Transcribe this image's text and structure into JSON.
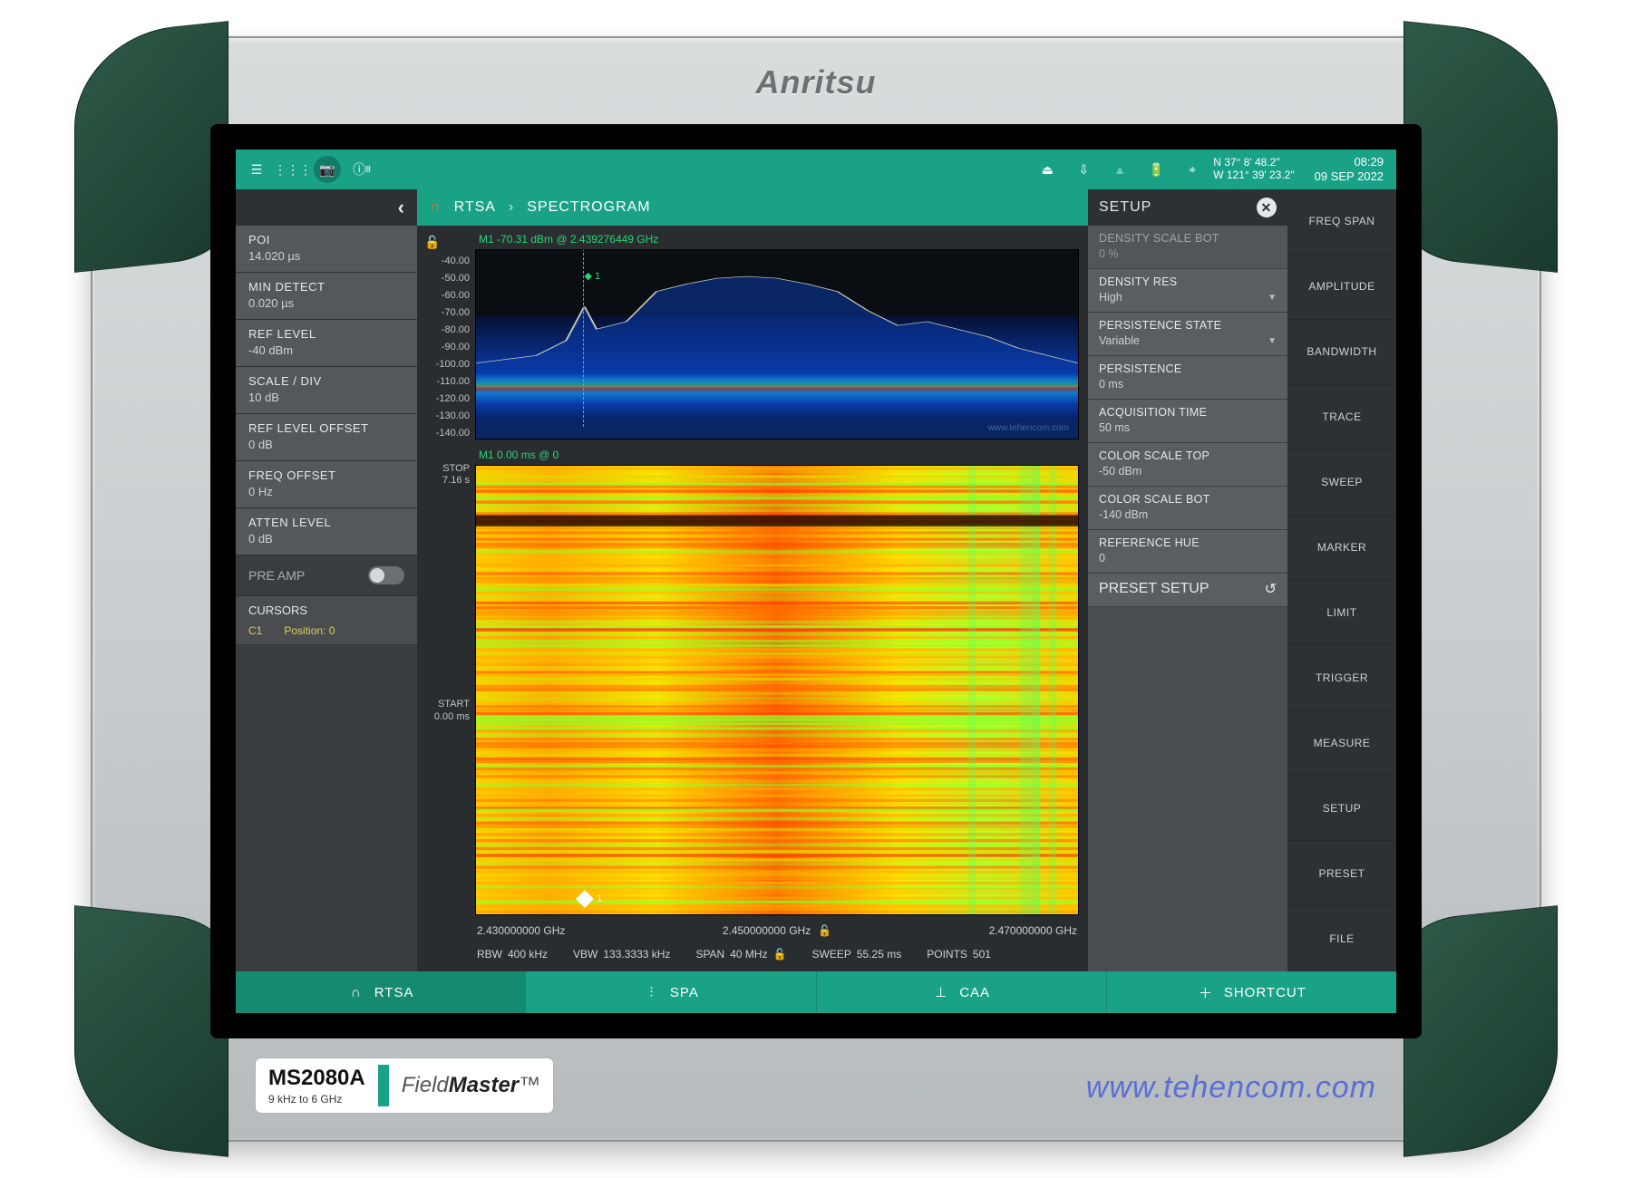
{
  "brand": "Anritsu",
  "model": "MS2080A",
  "freq_range": "9 kHz to 6 GHz",
  "product_line": "FieldMaster™",
  "watermark": "www.tehencom.com",
  "colors": {
    "teal": "#1aa287",
    "teal_dark": "#148a71",
    "panel": "#3a3d40",
    "panel_light": "#54585b",
    "panel_mid": "#4a4d50",
    "bg": "#2a2d2f",
    "text_dim": "#cfd1d3",
    "marker_green": "#2bd37a",
    "cursor_yellow": "#e0cf4a"
  },
  "topbar": {
    "gps_lat": "N 37° 8' 48.2\"",
    "gps_lon": "W 121° 39' 23.2\"",
    "time": "08:29",
    "date": "09 SEP 2022",
    "info_badge": "8"
  },
  "breadcrumb": {
    "mode": "RTSA",
    "view": "SPECTROGRAM"
  },
  "left_panel": [
    {
      "label": "POI",
      "value": "14.020 µs"
    },
    {
      "label": "MIN DETECT",
      "value": "0.020 µs"
    },
    {
      "label": "REF LEVEL",
      "value": "-40 dBm"
    },
    {
      "label": "SCALE / DIV",
      "value": "10 dB"
    },
    {
      "label": "REF LEVEL OFFSET",
      "value": "0 dB"
    },
    {
      "label": "FREQ OFFSET",
      "value": "0 Hz"
    },
    {
      "label": "ATTEN LEVEL",
      "value": "0 dB"
    }
  ],
  "preamp_label": "PRE AMP",
  "cursors_label": "CURSORS",
  "cursor": {
    "id": "C1",
    "pos_label": "Position: 0"
  },
  "yaxis": {
    "ticks": [
      "-40.00",
      "-50.00",
      "-60.00",
      "-70.00",
      "-80.00",
      "-90.00",
      "-100.00",
      "-110.00",
      "-120.00",
      "-130.00",
      "-140.00"
    ],
    "stop_label": "STOP",
    "stop_value": "7.16 s",
    "start_label": "START",
    "start_value": "0.00 ms"
  },
  "marker1": "M1   -70.31 dBm @ 2.439276449 GHz",
  "spectro_marker": "M1  0.00 ms @ 0",
  "plot_watermark": "www.tehencom.com",
  "xaxis": {
    "start": "2.430000000 GHz",
    "center": "2.450000000 GHz",
    "stop": "2.470000000 GHz"
  },
  "readout": {
    "rbw_label": "RBW",
    "rbw": "400 kHz",
    "vbw_label": "VBW",
    "vbw": "133.3333 kHz",
    "span_label": "SPAN",
    "span": "40 MHz",
    "sweep_label": "SWEEP",
    "sweep": "55.25 ms",
    "points_label": "POINTS",
    "points": "501"
  },
  "setup": {
    "title": "SETUP",
    "items": [
      {
        "label": "DENSITY SCALE BOT",
        "value": "0 %",
        "disabled": true
      },
      {
        "label": "DENSITY RES",
        "value": "High",
        "dropdown": true
      },
      {
        "label": "PERSISTENCE STATE",
        "value": "Variable",
        "dropdown": true
      },
      {
        "label": "PERSISTENCE",
        "value": "0 ms"
      },
      {
        "label": "ACQUISITION TIME",
        "value": "50 ms"
      },
      {
        "label": "COLOR SCALE TOP",
        "value": "-50 dBm"
      },
      {
        "label": "COLOR SCALE BOT",
        "value": "-140 dBm"
      },
      {
        "label": "REFERENCE HUE",
        "value": "0"
      }
    ],
    "preset": "PRESET SETUP"
  },
  "menu": [
    "FREQ SPAN",
    "AMPLITUDE",
    "BANDWIDTH",
    "TRACE",
    "SWEEP",
    "MARKER",
    "LIMIT",
    "TRIGGER",
    "MEASURE",
    "SETUP",
    "PRESET",
    "FILE"
  ],
  "tabs": [
    {
      "label": "RTSA",
      "active": true
    },
    {
      "label": "SPA"
    },
    {
      "label": "CAA"
    },
    {
      "label": "SHORTCUT",
      "plus": true
    }
  ],
  "spectrum_chart": {
    "type": "rtsa-density",
    "ylim": [
      -140,
      -40
    ],
    "trace_color": "#f5f0c0",
    "gradient": [
      "#ff2a00",
      "#ffbf00",
      "#57ff3a",
      "#00d8ff",
      "#0030ff"
    ],
    "noise_floor_dbm": -105,
    "peak_envelope": [
      [
        0,
        -100
      ],
      [
        0.05,
        -98
      ],
      [
        0.1,
        -96
      ],
      [
        0.15,
        -88
      ],
      [
        0.18,
        -70
      ],
      [
        0.2,
        -82
      ],
      [
        0.25,
        -78
      ],
      [
        0.3,
        -62
      ],
      [
        0.35,
        -58
      ],
      [
        0.4,
        -55
      ],
      [
        0.45,
        -54
      ],
      [
        0.5,
        -55
      ],
      [
        0.55,
        -58
      ],
      [
        0.6,
        -62
      ],
      [
        0.65,
        -72
      ],
      [
        0.7,
        -80
      ],
      [
        0.75,
        -78
      ],
      [
        0.8,
        -82
      ],
      [
        0.85,
        -86
      ],
      [
        0.9,
        -92
      ],
      [
        0.95,
        -96
      ],
      [
        1,
        -100
      ]
    ]
  },
  "spectrogram_chart": {
    "type": "spectrogram",
    "dominant_colors": [
      "#ff3a00",
      "#ffae00",
      "#ffe600",
      "#b8ff2a",
      "#2aff66"
    ],
    "dark_streak_y": 0.12
  }
}
